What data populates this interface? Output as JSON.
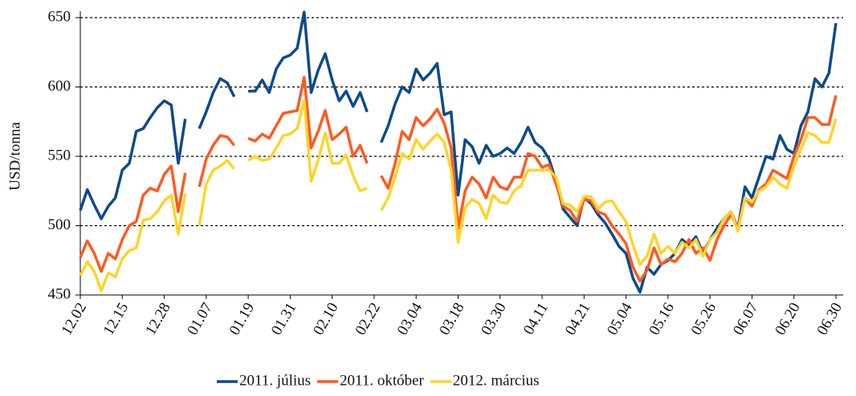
{
  "chart_data": {
    "type": "line",
    "y_label": "USD/tonna",
    "categories": [
      "12.02",
      null,
      null,
      null,
      null,
      null,
      "12.15",
      null,
      null,
      null,
      null,
      null,
      "12.28",
      null,
      null,
      null,
      null,
      null,
      "01.07",
      null,
      null,
      null,
      null,
      null,
      "01.19",
      null,
      null,
      null,
      null,
      null,
      "01.31",
      null,
      null,
      null,
      null,
      null,
      "02.10",
      null,
      null,
      null,
      null,
      null,
      "02.22",
      null,
      null,
      null,
      null,
      null,
      "03.04",
      null,
      null,
      null,
      null,
      null,
      "03.18",
      null,
      null,
      null,
      null,
      null,
      "03.30",
      null,
      null,
      null,
      null,
      null,
      "04.11",
      null,
      null,
      null,
      null,
      null,
      "04.21",
      null,
      null,
      null,
      null,
      null,
      "05.04",
      null,
      null,
      null,
      null,
      null,
      "05.16",
      null,
      null,
      null,
      null,
      null,
      "05.26",
      null,
      null,
      null,
      null,
      null,
      "06.07",
      null,
      null,
      null,
      null,
      null,
      "06.20",
      null,
      null,
      null,
      null,
      null,
      "06.30"
    ],
    "series": [
      {
        "name": "2011. július",
        "color": "#0d4a8a",
        "values": [
          511,
          526,
          515,
          505,
          514,
          520,
          540,
          545,
          568,
          570,
          578,
          585,
          590,
          587,
          545,
          577,
          null,
          570,
          582,
          596,
          606,
          603,
          593,
          null,
          597,
          597,
          605,
          596,
          613,
          621,
          623,
          628,
          654,
          596,
          612,
          624,
          605,
          590,
          597,
          586,
          596,
          582,
          null,
          560,
          572,
          588,
          600,
          596,
          613,
          605,
          610,
          617,
          580,
          582,
          522,
          562,
          557,
          545,
          558,
          550,
          552,
          556,
          552,
          560,
          571,
          560,
          556,
          548,
          532,
          512,
          506,
          500,
          520,
          516,
          508,
          502,
          494,
          485,
          480,
          462,
          452,
          470,
          465,
          472,
          475,
          480,
          490,
          486,
          492,
          480,
          490,
          498,
          505,
          510,
          498,
          528,
          520,
          535,
          550,
          548,
          565,
          555,
          552,
          572,
          582,
          606,
          600,
          610,
          646
        ]
      },
      {
        "name": "2011. október",
        "color": "#ff5a1f",
        "values": [
          477,
          489,
          480,
          467,
          480,
          476,
          490,
          500,
          503,
          522,
          527,
          525,
          537,
          543,
          510,
          538,
          null,
          528,
          548,
          558,
          565,
          564,
          558,
          null,
          563,
          561,
          566,
          563,
          572,
          581,
          582,
          583,
          607,
          556,
          568,
          583,
          562,
          566,
          571,
          550,
          558,
          545,
          null,
          536,
          527,
          545,
          568,
          562,
          578,
          572,
          577,
          584,
          574,
          556,
          498,
          525,
          535,
          530,
          520,
          535,
          528,
          526,
          535,
          535,
          552,
          550,
          542,
          544,
          530,
          514,
          511,
          503,
          519,
          518,
          510,
          508,
          500,
          494,
          487,
          470,
          460,
          468,
          484,
          472,
          476,
          474,
          480,
          490,
          480,
          484,
          475,
          490,
          500,
          508,
          498,
          520,
          514,
          526,
          530,
          540,
          537,
          534,
          550,
          562,
          578,
          578,
          573,
          573,
          594
        ]
      },
      {
        "name": "2012. március",
        "color": "#ffd42a",
        "values": [
          464,
          474,
          467,
          453,
          466,
          463,
          476,
          482,
          484,
          504,
          505,
          510,
          518,
          522,
          494,
          523,
          null,
          500,
          530,
          540,
          543,
          547,
          541,
          null,
          547,
          550,
          547,
          548,
          556,
          565,
          566,
          570,
          590,
          532,
          547,
          567,
          545,
          545,
          551,
          536,
          525,
          527,
          null,
          511,
          520,
          535,
          552,
          548,
          562,
          555,
          561,
          566,
          560,
          540,
          488,
          513,
          519,
          516,
          505,
          522,
          517,
          516,
          525,
          529,
          540,
          540,
          540,
          540,
          535,
          516,
          515,
          510,
          521,
          521,
          512,
          517,
          518,
          510,
          503,
          486,
          472,
          478,
          494,
          480,
          485,
          480,
          488,
          484,
          490,
          478,
          490,
          495,
          505,
          510,
          496,
          520,
          517,
          525,
          528,
          535,
          530,
          527,
          543,
          555,
          567,
          565,
          560,
          560,
          577
        ]
      }
    ],
    "ylim": [
      450,
      650
    ],
    "yticks": [
      450,
      500,
      550,
      600,
      650
    ],
    "grid": true,
    "legend": "bottom"
  }
}
